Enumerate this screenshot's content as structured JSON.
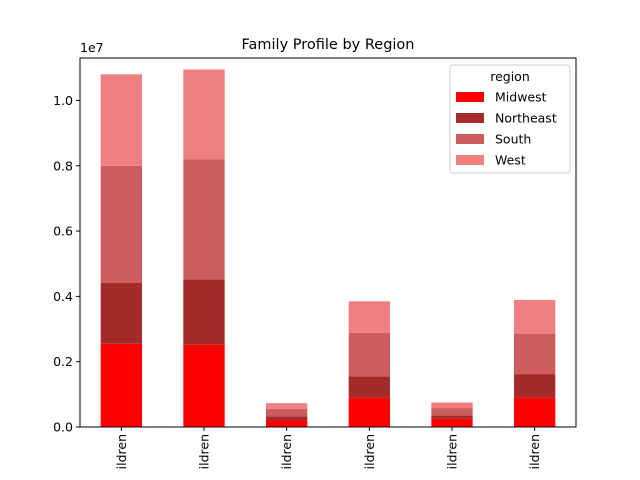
{
  "chart_data": {
    "type": "bar",
    "stacked": true,
    "title": "Family Profile by Region",
    "xlabel": "",
    "ylabel": "",
    "axis_multiplier": "1e7",
    "ylim": [
      0,
      11300000
    ],
    "yticks": [
      0.0,
      0.2,
      0.4,
      0.6,
      0.8,
      1.0
    ],
    "ytick_labels": [
      "0.0",
      "0.2",
      "0.4",
      "0.6",
      "0.8",
      "1.0"
    ],
    "categories": [
      "ildren",
      "ildren",
      "ildren",
      "ildren",
      "ildren",
      "ildren"
    ],
    "legend": {
      "title": "region",
      "placement": "top-right"
    },
    "series": [
      {
        "name": "Midwest",
        "color": "#ff0000",
        "values": [
          2550000,
          2520000,
          200000,
          900000,
          250000,
          900000
        ]
      },
      {
        "name": "Northeast",
        "color": "#a52a2a",
        "values": [
          1870000,
          2000000,
          130000,
          650000,
          100000,
          720000
        ]
      },
      {
        "name": "South",
        "color": "#cd5c5c",
        "values": [
          3580000,
          3680000,
          230000,
          1330000,
          230000,
          1240000
        ]
      },
      {
        "name": "West",
        "color": "#f08080",
        "values": [
          2800000,
          2750000,
          170000,
          970000,
          170000,
          1030000
        ]
      }
    ]
  }
}
